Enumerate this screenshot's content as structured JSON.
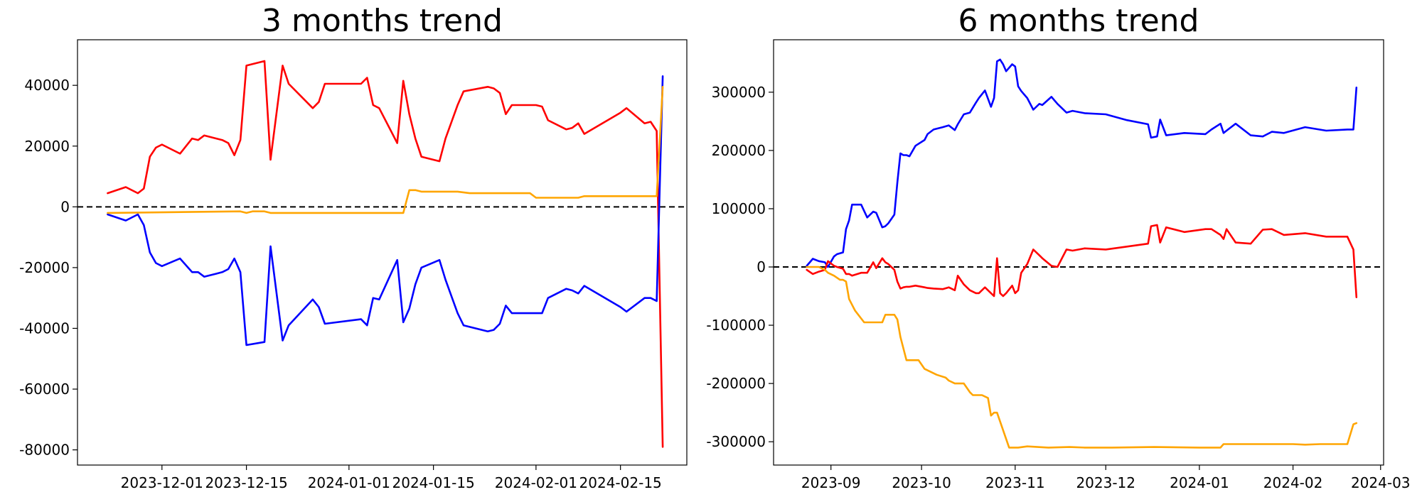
{
  "chart_data": [
    {
      "type": "line",
      "title": "3 months trend",
      "x_type": "date",
      "xlim": [
        "2023-11-17",
        "2024-02-26"
      ],
      "ylim": [
        -85000,
        55000
      ],
      "xticks": [
        "2023-12-01",
        "2023-12-15",
        "2024-01-01",
        "2024-01-15",
        "2024-02-01",
        "2024-02-15"
      ],
      "yticks": [
        40000,
        20000,
        0,
        -20000,
        -40000,
        -60000,
        -80000
      ],
      "zero_line": true,
      "grid": false,
      "series": [
        {
          "color": "#ff0000",
          "x": [
            "2023-11-22",
            "2023-11-25",
            "2023-11-27",
            "2023-11-28",
            "2023-11-29",
            "2023-11-30",
            "2023-12-01",
            "2023-12-04",
            "2023-12-06",
            "2023-12-07",
            "2023-12-08",
            "2023-12-10",
            "2023-12-11",
            "2023-12-12",
            "2023-12-13",
            "2023-12-14",
            "2023-12-15",
            "2023-12-18",
            "2023-12-19",
            "2023-12-21",
            "2023-12-22",
            "2023-12-26",
            "2023-12-27",
            "2023-12-28",
            "2024-01-03",
            "2024-01-04",
            "2024-01-05",
            "2024-01-06",
            "2024-01-09",
            "2024-01-10",
            "2024-01-11",
            "2024-01-12",
            "2024-01-13",
            "2024-01-16",
            "2024-01-17",
            "2024-01-19",
            "2024-01-20",
            "2024-01-24",
            "2024-01-25",
            "2024-01-26",
            "2024-01-27",
            "2024-01-28",
            "2024-01-31",
            "2024-02-01",
            "2024-02-02",
            "2024-02-03",
            "2024-02-06",
            "2024-02-07",
            "2024-02-08",
            "2024-02-09",
            "2024-02-15",
            "2024-02-16",
            "2024-02-19",
            "2024-02-20",
            "2024-02-21",
            "2024-02-22"
          ],
          "y": [
            4500,
            6500,
            4500,
            6000,
            16500,
            19500,
            20500,
            17500,
            22500,
            22000,
            23500,
            22500,
            22000,
            21000,
            17000,
            22000,
            46500,
            48000,
            15500,
            46500,
            40500,
            32500,
            34500,
            40500,
            40500,
            42500,
            33500,
            32500,
            21000,
            41500,
            30500,
            22500,
            16500,
            15000,
            22500,
            33500,
            38000,
            39500,
            39000,
            37500,
            30500,
            33500,
            33500,
            33500,
            33000,
            28500,
            25500,
            26000,
            27500,
            24000,
            31000,
            32500,
            27500,
            28000,
            25000,
            -79000
          ]
        },
        {
          "color": "#0000ff",
          "x": [
            "2023-11-22",
            "2023-11-25",
            "2023-11-27",
            "2023-11-28",
            "2023-11-29",
            "2023-11-30",
            "2023-12-01",
            "2023-12-04",
            "2023-12-06",
            "2023-12-07",
            "2023-12-08",
            "2023-12-10",
            "2023-12-11",
            "2023-12-12",
            "2023-12-13",
            "2023-12-14",
            "2023-12-15",
            "2023-12-18",
            "2023-12-19",
            "2023-12-21",
            "2023-12-22",
            "2023-12-26",
            "2023-12-27",
            "2023-12-28",
            "2024-01-03",
            "2024-01-04",
            "2024-01-05",
            "2024-01-06",
            "2024-01-09",
            "2024-01-10",
            "2024-01-11",
            "2024-01-12",
            "2024-01-13",
            "2024-01-16",
            "2024-01-17",
            "2024-01-19",
            "2024-01-20",
            "2024-01-24",
            "2024-01-25",
            "2024-01-26",
            "2024-01-27",
            "2024-01-28",
            "2024-01-31",
            "2024-02-01",
            "2024-02-02",
            "2024-02-03",
            "2024-02-06",
            "2024-02-07",
            "2024-02-08",
            "2024-02-09",
            "2024-02-15",
            "2024-02-16",
            "2024-02-19",
            "2024-02-20",
            "2024-02-21",
            "2024-02-22"
          ],
          "y": [
            -2500,
            -4500,
            -2500,
            -6000,
            -15000,
            -18500,
            -19500,
            -17000,
            -21500,
            -21500,
            -23000,
            -22000,
            -21500,
            -20500,
            -17000,
            -21500,
            -45500,
            -44500,
            -13000,
            -44000,
            -39000,
            -30500,
            -33000,
            -38500,
            -37000,
            -39000,
            -30000,
            -30500,
            -17500,
            -38000,
            -33500,
            -25500,
            -20000,
            -17500,
            -24000,
            -35000,
            -39000,
            -41000,
            -40500,
            -38500,
            -32500,
            -35000,
            -35000,
            -35000,
            -35000,
            -30000,
            -27000,
            -27500,
            -28500,
            -26000,
            -33000,
            -34500,
            -30000,
            -30000,
            -31000,
            43000
          ]
        },
        {
          "color": "#ffa500",
          "x": [
            "2023-11-22",
            "2023-12-14",
            "2023-12-15",
            "2023-12-16",
            "2023-12-18",
            "2023-12-19",
            "2024-01-10",
            "2024-01-11",
            "2024-01-12",
            "2024-01-13",
            "2024-01-15",
            "2024-01-19",
            "2024-01-21",
            "2024-01-31",
            "2024-02-01",
            "2024-02-08",
            "2024-02-09",
            "2024-02-20",
            "2024-02-21",
            "2024-02-22"
          ],
          "y": [
            -2000,
            -1500,
            -2000,
            -1500,
            -1500,
            -2000,
            -2000,
            5500,
            5500,
            5000,
            5000,
            5000,
            4500,
            4500,
            3000,
            3000,
            3500,
            3500,
            3500,
            39500
          ]
        }
      ]
    },
    {
      "type": "line",
      "title": "6 months trend",
      "x_type": "date",
      "xlim": [
        "2023-08-13",
        "2024-03-02"
      ],
      "ylim": [
        -340000,
        390000
      ],
      "xticks": [
        "2023-09",
        "2023-10",
        "2023-11",
        "2023-12",
        "2024-01",
        "2024-02",
        "2024-03"
      ],
      "yticks": [
        300000,
        200000,
        100000,
        0,
        -100000,
        -200000,
        -300000
      ],
      "zero_line": true,
      "grid": false,
      "series": [
        {
          "color": "#0000ff",
          "x": [
            "2023-08-24",
            "2023-08-26",
            "2023-08-28",
            "2023-08-30",
            "2023-08-31",
            "2023-09-02",
            "2023-09-03",
            "2023-09-05",
            "2023-09-06",
            "2023-09-07",
            "2023-09-08",
            "2023-09-11",
            "2023-09-13",
            "2023-09-15",
            "2023-09-16",
            "2023-09-18",
            "2023-09-19",
            "2023-09-20",
            "2023-09-22",
            "2023-09-23",
            "2023-09-24",
            "2023-09-25",
            "2023-09-26",
            "2023-09-27",
            "2023-09-29",
            "2023-10-02",
            "2023-10-03",
            "2023-10-05",
            "2023-10-08",
            "2023-10-10",
            "2023-10-12",
            "2023-10-13",
            "2023-10-15",
            "2023-10-17",
            "2023-10-19",
            "2023-10-20",
            "2023-10-22",
            "2023-10-24",
            "2023-10-25",
            "2023-10-26",
            "2023-10-27",
            "2023-10-28",
            "2023-10-29",
            "2023-10-31",
            "2023-11-01",
            "2023-11-02",
            "2023-11-03",
            "2023-11-05",
            "2023-11-07",
            "2023-11-09",
            "2023-11-10",
            "2023-11-13",
            "2023-11-15",
            "2023-11-18",
            "2023-11-20",
            "2023-11-24",
            "2023-12-01",
            "2023-12-08",
            "2023-12-15",
            "2023-12-16",
            "2023-12-18",
            "2023-12-19",
            "2023-12-21",
            "2023-12-27",
            "2024-01-03",
            "2024-01-05",
            "2024-01-08",
            "2024-01-09",
            "2024-01-10",
            "2024-01-13",
            "2024-01-18",
            "2024-01-22",
            "2024-01-25",
            "2024-01-29",
            "2024-02-05",
            "2024-02-12",
            "2024-02-19",
            "2024-02-21",
            "2024-02-22"
          ],
          "y": [
            2000,
            14000,
            10000,
            8000,
            0,
            18000,
            22000,
            25000,
            65000,
            80000,
            107000,
            107000,
            85000,
            95000,
            93000,
            68000,
            70000,
            75000,
            90000,
            145000,
            195000,
            192000,
            192000,
            190000,
            208000,
            218000,
            228000,
            236000,
            240000,
            243000,
            235000,
            245000,
            262000,
            265000,
            282000,
            290000,
            303000,
            275000,
            290000,
            353000,
            356000,
            348000,
            336000,
            348000,
            344000,
            310000,
            302000,
            290000,
            270000,
            280000,
            278000,
            292000,
            280000,
            265000,
            268000,
            264000,
            262000,
            252000,
            245000,
            222000,
            224000,
            253000,
            226000,
            230000,
            228000,
            236000,
            246000,
            230000,
            234000,
            246000,
            226000,
            224000,
            232000,
            230000,
            240000,
            234000,
            236000,
            236000,
            308000
          ]
        },
        {
          "color": "#ff0000",
          "x": [
            "2023-08-24",
            "2023-08-26",
            "2023-08-28",
            "2023-08-30",
            "2023-08-31",
            "2023-09-02",
            "2023-09-03",
            "2023-09-05",
            "2023-09-06",
            "2023-09-07",
            "2023-09-08",
            "2023-09-11",
            "2023-09-13",
            "2023-09-15",
            "2023-09-16",
            "2023-09-18",
            "2023-09-19",
            "2023-09-20",
            "2023-09-22",
            "2023-09-23",
            "2023-09-24",
            "2023-09-25",
            "2023-09-26",
            "2023-09-27",
            "2023-09-29",
            "2023-10-02",
            "2023-10-03",
            "2023-10-05",
            "2023-10-08",
            "2023-10-10",
            "2023-10-12",
            "2023-10-13",
            "2023-10-15",
            "2023-10-17",
            "2023-10-19",
            "2023-10-20",
            "2023-10-22",
            "2023-10-24",
            "2023-10-25",
            "2023-10-26",
            "2023-10-27",
            "2023-10-28",
            "2023-10-29",
            "2023-10-31",
            "2023-11-01",
            "2023-11-02",
            "2023-11-03",
            "2023-11-05",
            "2023-11-07",
            "2023-11-09",
            "2023-11-10",
            "2023-11-13",
            "2023-11-15",
            "2023-11-18",
            "2023-11-20",
            "2023-11-24",
            "2023-12-01",
            "2023-12-08",
            "2023-12-15",
            "2023-12-16",
            "2023-12-18",
            "2023-12-19",
            "2023-12-21",
            "2023-12-27",
            "2024-01-03",
            "2024-01-05",
            "2024-01-08",
            "2024-01-09",
            "2024-01-10",
            "2024-01-13",
            "2024-01-18",
            "2024-01-22",
            "2024-01-25",
            "2024-01-29",
            "2024-02-05",
            "2024-02-12",
            "2024-02-19",
            "2024-02-21",
            "2024-02-22"
          ],
          "y": [
            -5000,
            -12000,
            -8000,
            -5000,
            10000,
            2000,
            0,
            -3000,
            -12000,
            -12000,
            -15000,
            -10000,
            -10000,
            8000,
            -2000,
            15000,
            8000,
            5000,
            -5000,
            -25000,
            -37000,
            -35000,
            -34000,
            -34000,
            -32000,
            -35000,
            -36000,
            -37000,
            -38000,
            -35000,
            -40000,
            -15000,
            -30000,
            -40000,
            -45000,
            -45000,
            -35000,
            -45000,
            -50000,
            15000,
            -45000,
            -50000,
            -45000,
            -32000,
            -45000,
            -40000,
            -10000,
            5000,
            30000,
            20000,
            15000,
            2000,
            0,
            30000,
            28000,
            32000,
            30000,
            35000,
            40000,
            70000,
            72000,
            42000,
            68000,
            60000,
            65000,
            65000,
            55000,
            48000,
            65000,
            42000,
            40000,
            64000,
            65000,
            55000,
            58000,
            52000,
            52000,
            30000,
            -52000
          ]
        },
        {
          "color": "#ffa500",
          "x": [
            "2023-08-24",
            "2023-08-28",
            "2023-08-30",
            "2023-08-31",
            "2023-09-02",
            "2023-09-04",
            "2023-09-05",
            "2023-09-06",
            "2023-09-07",
            "2023-09-08",
            "2023-09-09",
            "2023-09-12",
            "2023-09-14",
            "2023-09-16",
            "2023-09-18",
            "2023-09-19",
            "2023-09-20",
            "2023-09-22",
            "2023-09-23",
            "2023-09-24",
            "2023-09-26",
            "2023-09-28",
            "2023-09-30",
            "2023-10-02",
            "2023-10-04",
            "2023-10-06",
            "2023-10-09",
            "2023-10-10",
            "2023-10-12",
            "2023-10-14",
            "2023-10-15",
            "2023-10-17",
            "2023-10-18",
            "2023-10-19",
            "2023-10-21",
            "2023-10-23",
            "2023-10-24",
            "2023-10-25",
            "2023-10-26",
            "2023-10-30",
            "2023-11-02",
            "2023-11-05",
            "2023-11-12",
            "2023-11-19",
            "2023-11-24",
            "2023-12-03",
            "2023-12-17",
            "2024-01-01",
            "2024-01-07",
            "2024-01-08",
            "2024-01-09",
            "2024-01-15",
            "2024-01-20",
            "2024-02-01",
            "2024-02-05",
            "2024-02-10",
            "2024-02-19",
            "2024-02-21",
            "2024-02-22"
          ],
          "y": [
            0,
            0,
            -5000,
            -10000,
            -15000,
            -22000,
            -22000,
            -25000,
            -55000,
            -65000,
            -75000,
            -95000,
            -95000,
            -95000,
            -95000,
            -82000,
            -82000,
            -82000,
            -90000,
            -120000,
            -160000,
            -160000,
            -160000,
            -175000,
            -180000,
            -185000,
            -190000,
            -195000,
            -200000,
            -200000,
            -200000,
            -215000,
            -220000,
            -220000,
            -220000,
            -225000,
            -255000,
            -250000,
            -250000,
            -310000,
            -310000,
            -308000,
            -310000,
            -309000,
            -310000,
            -310000,
            -309000,
            -310000,
            -310000,
            -310000,
            -304000,
            -304000,
            -304000,
            -304000,
            -305000,
            -304000,
            -304000,
            -270000,
            -268000
          ]
        }
      ]
    }
  ]
}
